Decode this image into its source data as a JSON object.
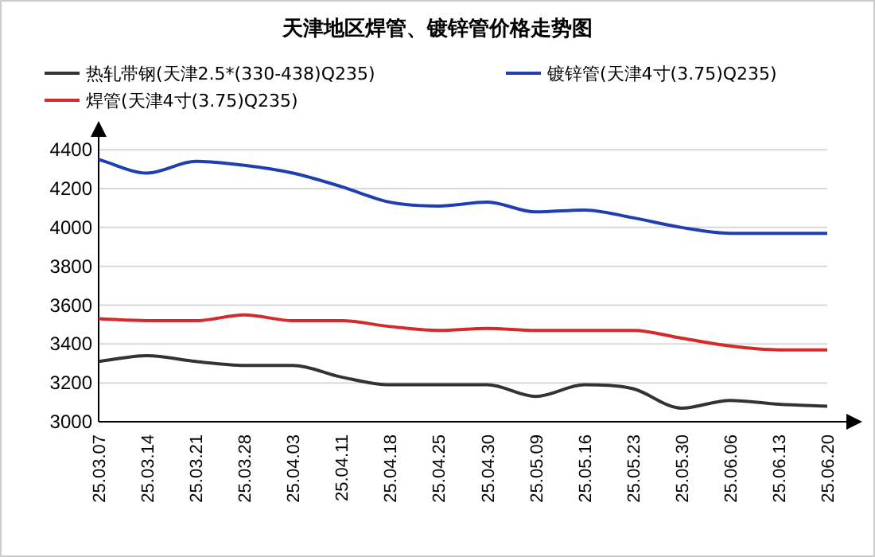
{
  "chart_data": {
    "type": "line",
    "title": "天津地区焊管、镀锌管价格走势图",
    "categories": [
      "25.03.07",
      "25.03.14",
      "25.03.21",
      "25.03.28",
      "25.04.03",
      "25.04.11",
      "25.04.18",
      "25.04.25",
      "25.04.30",
      "25.05.09",
      "25.05.16",
      "25.05.23",
      "25.05.30",
      "25.06.06",
      "25.06.13",
      "25.06.20"
    ],
    "series": [
      {
        "name": "热轧带钢(天津2.5*(330-438)Q235)",
        "color": "#333333",
        "values": [
          3310,
          3340,
          3310,
          3290,
          3290,
          3230,
          3190,
          3190,
          3190,
          3130,
          3190,
          3170,
          3070,
          3110,
          3090,
          3080
        ]
      },
      {
        "name": "镀锌管(天津4寸(3.75)Q235)",
        "color": "#1f3fb0",
        "values": [
          4350,
          4280,
          4340,
          4320,
          4280,
          4210,
          4130,
          4110,
          4130,
          4080,
          4090,
          4050,
          4000,
          3970,
          3970,
          3970
        ]
      },
      {
        "name": "焊管(天津4寸(3.75)Q235)",
        "color": "#d42a2a",
        "values": [
          3530,
          3520,
          3520,
          3550,
          3520,
          3520,
          3490,
          3470,
          3480,
          3470,
          3470,
          3470,
          3430,
          3390,
          3370,
          3370
        ]
      }
    ],
    "ylim": [
      3000,
      4450
    ],
    "yticks": [
      3000,
      3200,
      3400,
      3600,
      3800,
      4000,
      4200,
      4400
    ],
    "grid": "y",
    "legend": "top",
    "marker": "none",
    "line_style": "solid"
  }
}
